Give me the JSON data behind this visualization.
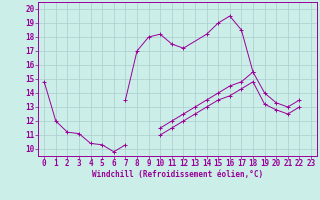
{
  "bg_color": "#cceee8",
  "line_color": "#990099",
  "grid_color": "#aacccc",
  "xlabel": "Windchill (Refroidissement éolien,°C)",
  "xlim": [
    -0.5,
    23.5
  ],
  "ylim": [
    9.5,
    20.5
  ],
  "xticks": [
    0,
    1,
    2,
    3,
    4,
    5,
    6,
    7,
    8,
    9,
    10,
    11,
    12,
    13,
    14,
    15,
    16,
    17,
    18,
    19,
    20,
    21,
    22,
    23
  ],
  "yticks": [
    10,
    11,
    12,
    13,
    14,
    15,
    16,
    17,
    18,
    19,
    20
  ],
  "series1_x": [
    0,
    1,
    2,
    3,
    4,
    5,
    6,
    7
  ],
  "series1_y": [
    14.8,
    12.0,
    11.2,
    11.1,
    10.4,
    10.3,
    9.8,
    10.3
  ],
  "series2_x": [
    7,
    8,
    9,
    10,
    11,
    12,
    14,
    15,
    16,
    17,
    18
  ],
  "series2_y": [
    13.5,
    17.0,
    18.0,
    18.2,
    17.5,
    17.2,
    18.2,
    19.0,
    19.5,
    18.5,
    15.5
  ],
  "series3_x": [
    10,
    11,
    12,
    13,
    14,
    15,
    16,
    17,
    18,
    19,
    20,
    21,
    22
  ],
  "series3_y": [
    11.5,
    12.0,
    12.5,
    13.0,
    13.5,
    14.0,
    14.5,
    14.8,
    15.5,
    14.0,
    13.3,
    13.0,
    13.5
  ],
  "series4_x": [
    10,
    11,
    12,
    13,
    14,
    15,
    16,
    17,
    18,
    19,
    20,
    21,
    22
  ],
  "series4_y": [
    11.0,
    11.5,
    12.0,
    12.5,
    13.0,
    13.5,
    13.8,
    14.3,
    14.8,
    13.2,
    12.8,
    12.5,
    13.0
  ],
  "tick_fontsize": 5.5,
  "xlabel_fontsize": 5.5,
  "lw": 0.7,
  "ms": 3.0,
  "mew": 0.7
}
